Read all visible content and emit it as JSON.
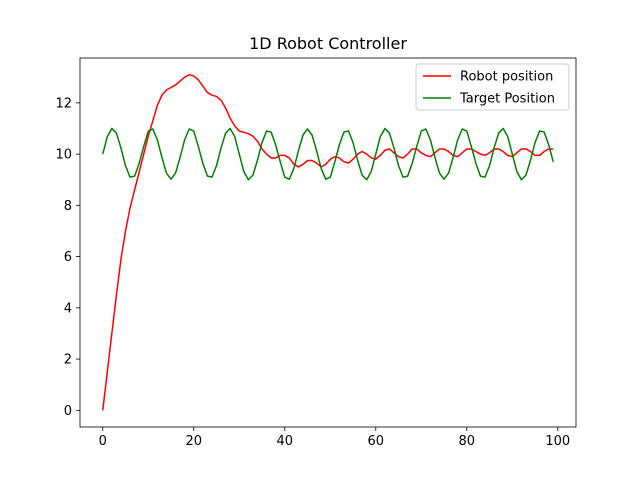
{
  "chart_data": {
    "type": "line",
    "title": "1D Robot Controller",
    "xlabel": "",
    "ylabel": "",
    "xlim": [
      -5,
      104
    ],
    "ylim": [
      -0.65,
      13.75
    ],
    "xticks": [
      0,
      20,
      40,
      60,
      80,
      100
    ],
    "yticks": [
      0,
      2,
      4,
      6,
      8,
      10,
      12
    ],
    "grid": false,
    "legend_position": "upper right",
    "series": [
      {
        "name": "Robot position",
        "color": "#ff0000",
        "x": [
          0,
          1,
          2,
          3,
          4,
          5,
          6,
          7,
          8,
          9,
          10,
          11,
          12,
          13,
          14,
          15,
          16,
          17,
          18,
          19,
          20,
          21,
          22,
          23,
          24,
          25,
          26,
          27,
          28,
          29,
          30,
          31,
          32,
          33,
          34,
          35,
          36,
          37,
          38,
          39,
          40,
          41,
          42,
          43,
          44,
          45,
          46,
          47,
          48,
          49,
          50,
          51,
          52,
          53,
          54,
          55,
          56,
          57,
          58,
          59,
          60,
          61,
          62,
          63,
          64,
          65,
          66,
          67,
          68,
          69,
          70,
          71,
          72,
          73,
          74,
          75,
          76,
          77,
          78,
          79,
          80,
          81,
          82,
          83,
          84,
          85,
          86,
          87,
          88,
          89,
          90,
          91,
          92,
          93,
          94,
          95,
          96,
          97,
          98,
          99
        ],
        "y": [
          0,
          1.5,
          3.0,
          4.5,
          5.9,
          7.0,
          7.9,
          8.6,
          9.3,
          10.0,
          10.7,
          11.3,
          11.9,
          12.3,
          12.5,
          12.6,
          12.7,
          12.85,
          13.0,
          13.1,
          13.05,
          12.9,
          12.65,
          12.4,
          12.3,
          12.25,
          12.1,
          11.8,
          11.4,
          11.1,
          10.9,
          10.85,
          10.8,
          10.7,
          10.5,
          10.2,
          10.0,
          9.85,
          9.85,
          9.95,
          9.95,
          9.85,
          9.6,
          9.5,
          9.6,
          9.75,
          9.75,
          9.65,
          9.5,
          9.6,
          9.8,
          9.9,
          9.85,
          9.7,
          9.65,
          9.8,
          10.0,
          10.1,
          10.0,
          9.85,
          9.8,
          9.95,
          10.15,
          10.2,
          10.05,
          9.9,
          9.85,
          10.0,
          10.2,
          10.2,
          10.05,
          9.95,
          9.9,
          10.05,
          10.2,
          10.2,
          10.1,
          9.95,
          9.9,
          10.05,
          10.2,
          10.2,
          10.1,
          10.0,
          9.95,
          10.05,
          10.2,
          10.2,
          10.1,
          9.95,
          9.9,
          10.05,
          10.2,
          10.2,
          10.1,
          9.95,
          9.95,
          10.1,
          10.2,
          10.2
        ]
      },
      {
        "name": "Target Position",
        "color": "#008000",
        "x": [
          0,
          1,
          2,
          3,
          4,
          5,
          6,
          7,
          8,
          9,
          10,
          11,
          12,
          13,
          14,
          15,
          16,
          17,
          18,
          19,
          20,
          21,
          22,
          23,
          24,
          25,
          26,
          27,
          28,
          29,
          30,
          31,
          32,
          33,
          34,
          35,
          36,
          37,
          38,
          39,
          40,
          41,
          42,
          43,
          44,
          45,
          46,
          47,
          48,
          49,
          50,
          51,
          52,
          53,
          54,
          55,
          56,
          57,
          58,
          59,
          60,
          61,
          62,
          63,
          64,
          65,
          66,
          67,
          68,
          69,
          70,
          71,
          72,
          73,
          74,
          75,
          76,
          77,
          78,
          79,
          80,
          81,
          82,
          83,
          84,
          85,
          86,
          87,
          88,
          89,
          90,
          91,
          92,
          93,
          94,
          95,
          96,
          97,
          98,
          99
        ],
        "y": [
          10.0,
          10.68,
          11.0,
          10.82,
          10.24,
          9.55,
          9.1,
          9.14,
          9.64,
          10.3,
          10.9,
          10.98,
          10.56,
          9.87,
          9.26,
          9.02,
          9.26,
          9.87,
          10.56,
          10.98,
          10.9,
          10.3,
          9.64,
          9.14,
          9.1,
          9.55,
          10.24,
          10.82,
          11.0,
          10.68,
          10.0,
          9.32,
          9.0,
          9.18,
          9.76,
          10.45,
          10.9,
          10.86,
          10.36,
          9.7,
          9.1,
          9.02,
          9.44,
          10.13,
          10.74,
          10.98,
          10.74,
          10.13,
          9.44,
          9.02,
          9.1,
          9.7,
          10.36,
          10.86,
          10.9,
          10.45,
          9.76,
          9.18,
          9.0,
          9.32,
          10.0,
          10.68,
          11.0,
          10.82,
          10.24,
          9.55,
          9.1,
          9.14,
          9.64,
          10.3,
          10.9,
          10.98,
          10.56,
          9.87,
          9.26,
          9.02,
          9.26,
          9.87,
          10.56,
          10.98,
          10.9,
          10.3,
          9.64,
          9.14,
          9.1,
          9.55,
          10.24,
          10.82,
          11.0,
          10.68,
          10.0,
          9.32,
          9.0,
          9.18,
          9.76,
          10.45,
          10.9,
          10.86,
          10.36,
          9.7
        ]
      }
    ]
  }
}
